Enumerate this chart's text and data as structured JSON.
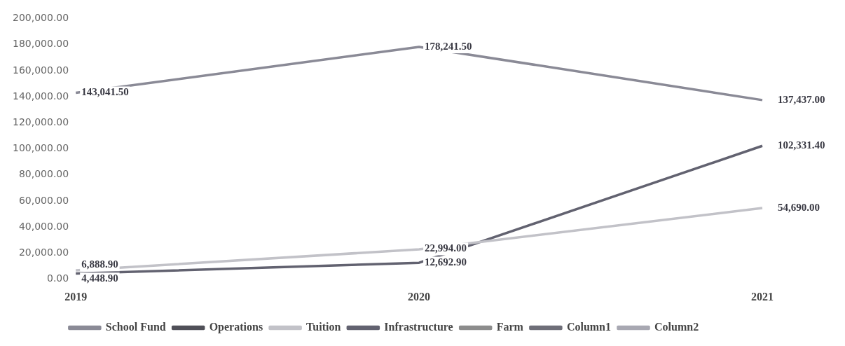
{
  "chart_data": {
    "type": "line",
    "categories": [
      "2019",
      "2020",
      "2021"
    ],
    "series": [
      {
        "name": "School Fund",
        "color": "#8a8a96",
        "values": [
          143041.5,
          178241.5,
          137437.0
        ],
        "value_labels": [
          "143,041.50",
          "178,241.50",
          "137,437.00"
        ]
      },
      {
        "name": "Operations",
        "color": "#505058",
        "values": [
          null,
          null,
          null
        ]
      },
      {
        "name": "Tuition",
        "color": "#c2c2c8",
        "values": [
          6888.9,
          22994.0,
          54690.0
        ],
        "value_labels": [
          "6,888.90",
          "22,994.00",
          "54,690.00"
        ]
      },
      {
        "name": "Infrastructure",
        "color": "#626270",
        "values": [
          4448.9,
          12692.9,
          102331.4
        ],
        "value_labels": [
          "4,448.90",
          "12,692.90",
          "102,331.40"
        ]
      },
      {
        "name": "Farm",
        "color": "#8c8c8c",
        "values": [
          null,
          null,
          null
        ]
      },
      {
        "name": "Column1",
        "color": "#6e6e78",
        "values": [
          null,
          null,
          null
        ]
      },
      {
        "name": "Column2",
        "color": "#a8a8b2",
        "values": [
          null,
          null,
          null
        ]
      }
    ],
    "ylim": [
      0,
      200000
    ],
    "yticks": [
      {
        "value": 0,
        "label": "0.00"
      },
      {
        "value": 20000,
        "label": "20,000.00"
      },
      {
        "value": 40000,
        "label": "40,000.00"
      },
      {
        "value": 60000,
        "label": "60,000.00"
      },
      {
        "value": 80000,
        "label": "80,000.00"
      },
      {
        "value": 100000,
        "label": "100,000.00"
      },
      {
        "value": 120000,
        "label": "120,000.00"
      },
      {
        "value": 140000,
        "label": "140,000.00"
      },
      {
        "value": 160000,
        "label": "160,000.00"
      },
      {
        "value": 180000,
        "label": "180,000.00"
      },
      {
        "value": 200000,
        "label": "200,000.00"
      }
    ],
    "grid": false,
    "legend": "bottom",
    "marker": "none"
  }
}
